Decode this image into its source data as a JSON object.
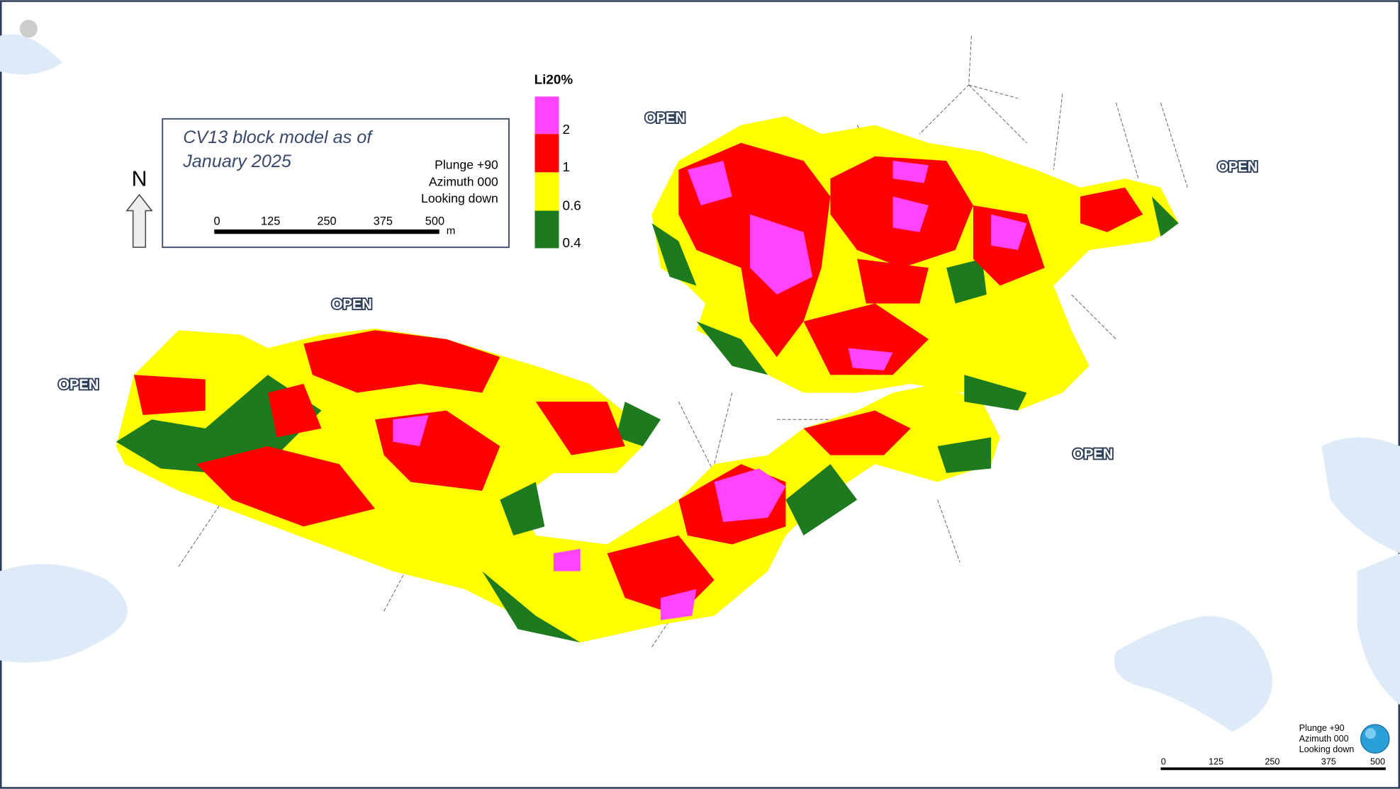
{
  "map": {
    "title_lines": [
      "CV13 block model as of",
      "January 2025"
    ],
    "view": [
      "Plunge +90",
      "Azimuth 000",
      "Looking down"
    ],
    "scale": {
      "labels": [
        0,
        125,
        250,
        375,
        500
      ],
      "unit": "m"
    },
    "north": "N",
    "legend": {
      "title": "Li20%",
      "labels": [
        2,
        1,
        0.6,
        0.4
      ]
    },
    "open_labels": [
      "OPEN",
      "OPEN",
      "OPEN",
      "OPEN",
      "OPEN"
    ],
    "corner": {
      "view": [
        "Plunge +90",
        "Azimuth 000",
        "Looking down"
      ],
      "scale_labels": [
        0,
        125,
        250,
        375,
        500
      ]
    }
  }
}
